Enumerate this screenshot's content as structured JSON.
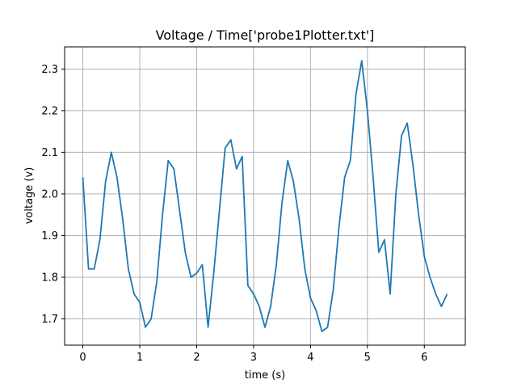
{
  "chart_data": {
    "type": "line",
    "title": "Voltage / Time['probe1Plotter.txt']",
    "xlabel": "time (s)",
    "ylabel": "voltage (v)",
    "xlim": [
      -0.32,
      6.72
    ],
    "ylim": [
      1.637,
      2.353
    ],
    "grid": true,
    "line_color": "#1f77b4",
    "x_ticks": [
      0,
      1,
      2,
      3,
      4,
      5,
      6
    ],
    "y_ticks": [
      1.7,
      1.8,
      1.9,
      2.0,
      2.1,
      2.2,
      2.3
    ],
    "x_tick_labels": [
      "0",
      "1",
      "2",
      "3",
      "4",
      "5",
      "6"
    ],
    "y_tick_labels": [
      "1.7",
      "1.8",
      "1.9",
      "2.0",
      "2.1",
      "2.2",
      "2.3"
    ],
    "series": [
      {
        "x": [
          0.0,
          0.1,
          0.2,
          0.3,
          0.4,
          0.5,
          0.6,
          0.7,
          0.8,
          0.9,
          1.0,
          1.1,
          1.2,
          1.3,
          1.4,
          1.5,
          1.6,
          1.7,
          1.8,
          1.9,
          2.0,
          2.1,
          2.2,
          2.3,
          2.4,
          2.5,
          2.6,
          2.7,
          2.8,
          2.9,
          3.0,
          3.1,
          3.2,
          3.3,
          3.4,
          3.5,
          3.6,
          3.7,
          3.8,
          3.9,
          4.0,
          4.1,
          4.2,
          4.3,
          4.4,
          4.5,
          4.6,
          4.7,
          4.8,
          4.9,
          5.0,
          5.1,
          5.2,
          5.3,
          5.4,
          5.5,
          5.6,
          5.7,
          5.8,
          5.9,
          6.0,
          6.1,
          6.2,
          6.3,
          6.4
        ],
        "y": [
          2.04,
          1.82,
          1.82,
          1.89,
          2.03,
          2.1,
          2.04,
          1.94,
          1.82,
          1.76,
          1.74,
          1.68,
          1.7,
          1.79,
          1.95,
          2.08,
          2.06,
          1.96,
          1.86,
          1.8,
          1.81,
          1.83,
          1.68,
          1.81,
          1.96,
          2.11,
          2.13,
          2.06,
          2.09,
          1.78,
          1.76,
          1.73,
          1.68,
          1.73,
          1.83,
          1.98,
          2.08,
          2.03,
          1.94,
          1.82,
          1.75,
          1.72,
          1.67,
          1.68,
          1.77,
          1.92,
          2.04,
          2.08,
          2.24,
          2.32,
          2.2,
          2.04,
          1.86,
          1.89,
          1.76,
          2.0,
          2.14,
          2.17,
          2.07,
          1.95,
          1.85,
          1.8,
          1.76,
          1.73,
          1.76
        ]
      }
    ]
  }
}
